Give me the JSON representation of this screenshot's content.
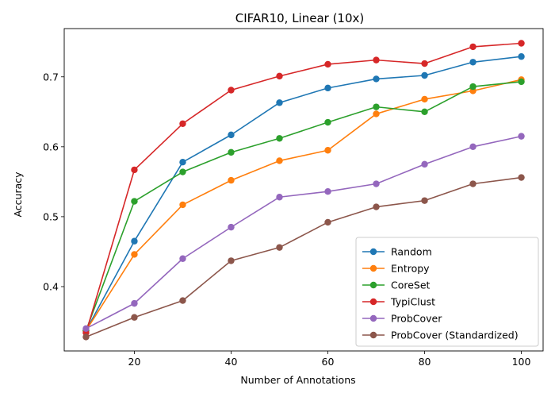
{
  "chart_data": {
    "type": "line",
    "title": "CIFAR10, Linear (10x)",
    "xlabel": "Number of Annotations",
    "ylabel": "Accuracy",
    "x": [
      10,
      20,
      30,
      40,
      50,
      60,
      70,
      80,
      90,
      100
    ],
    "xlim": [
      5.5,
      104.5
    ],
    "ylim": [
      0.308,
      0.769
    ],
    "xticks": [
      20,
      40,
      60,
      80,
      100
    ],
    "yticks": [
      0.4,
      0.5,
      0.6,
      0.7
    ],
    "ytick_labels": [
      "0.4",
      "0.5",
      "0.6",
      "0.7"
    ],
    "grid": false,
    "legend_position": "lower-right",
    "series": [
      {
        "name": "Random",
        "color": "#1f77b4",
        "values": [
          0.337,
          0.465,
          0.578,
          0.617,
          0.663,
          0.684,
          0.697,
          0.702,
          0.721,
          0.729
        ]
      },
      {
        "name": "Entropy",
        "color": "#ff7f0e",
        "values": [
          0.337,
          0.446,
          0.517,
          0.552,
          0.58,
          0.595,
          0.647,
          0.668,
          0.68,
          0.696
        ]
      },
      {
        "name": "CoreSet",
        "color": "#2ca02c",
        "values": [
          0.337,
          0.522,
          0.564,
          0.592,
          0.612,
          0.635,
          0.657,
          0.65,
          0.686,
          0.693
        ]
      },
      {
        "name": "TypiClust",
        "color": "#d62728",
        "values": [
          0.334,
          0.567,
          0.633,
          0.681,
          0.701,
          0.718,
          0.724,
          0.719,
          0.743,
          0.748
        ]
      },
      {
        "name": "ProbCover",
        "color": "#9467bd",
        "values": [
          0.34,
          0.376,
          0.44,
          0.485,
          0.528,
          0.536,
          0.547,
          0.575,
          0.6,
          0.615
        ]
      },
      {
        "name": "ProbCover (Standardized)",
        "color": "#8c564b",
        "values": [
          0.328,
          0.356,
          0.38,
          0.437,
          0.456,
          0.492,
          0.514,
          0.523,
          0.547,
          0.556
        ]
      }
    ]
  }
}
